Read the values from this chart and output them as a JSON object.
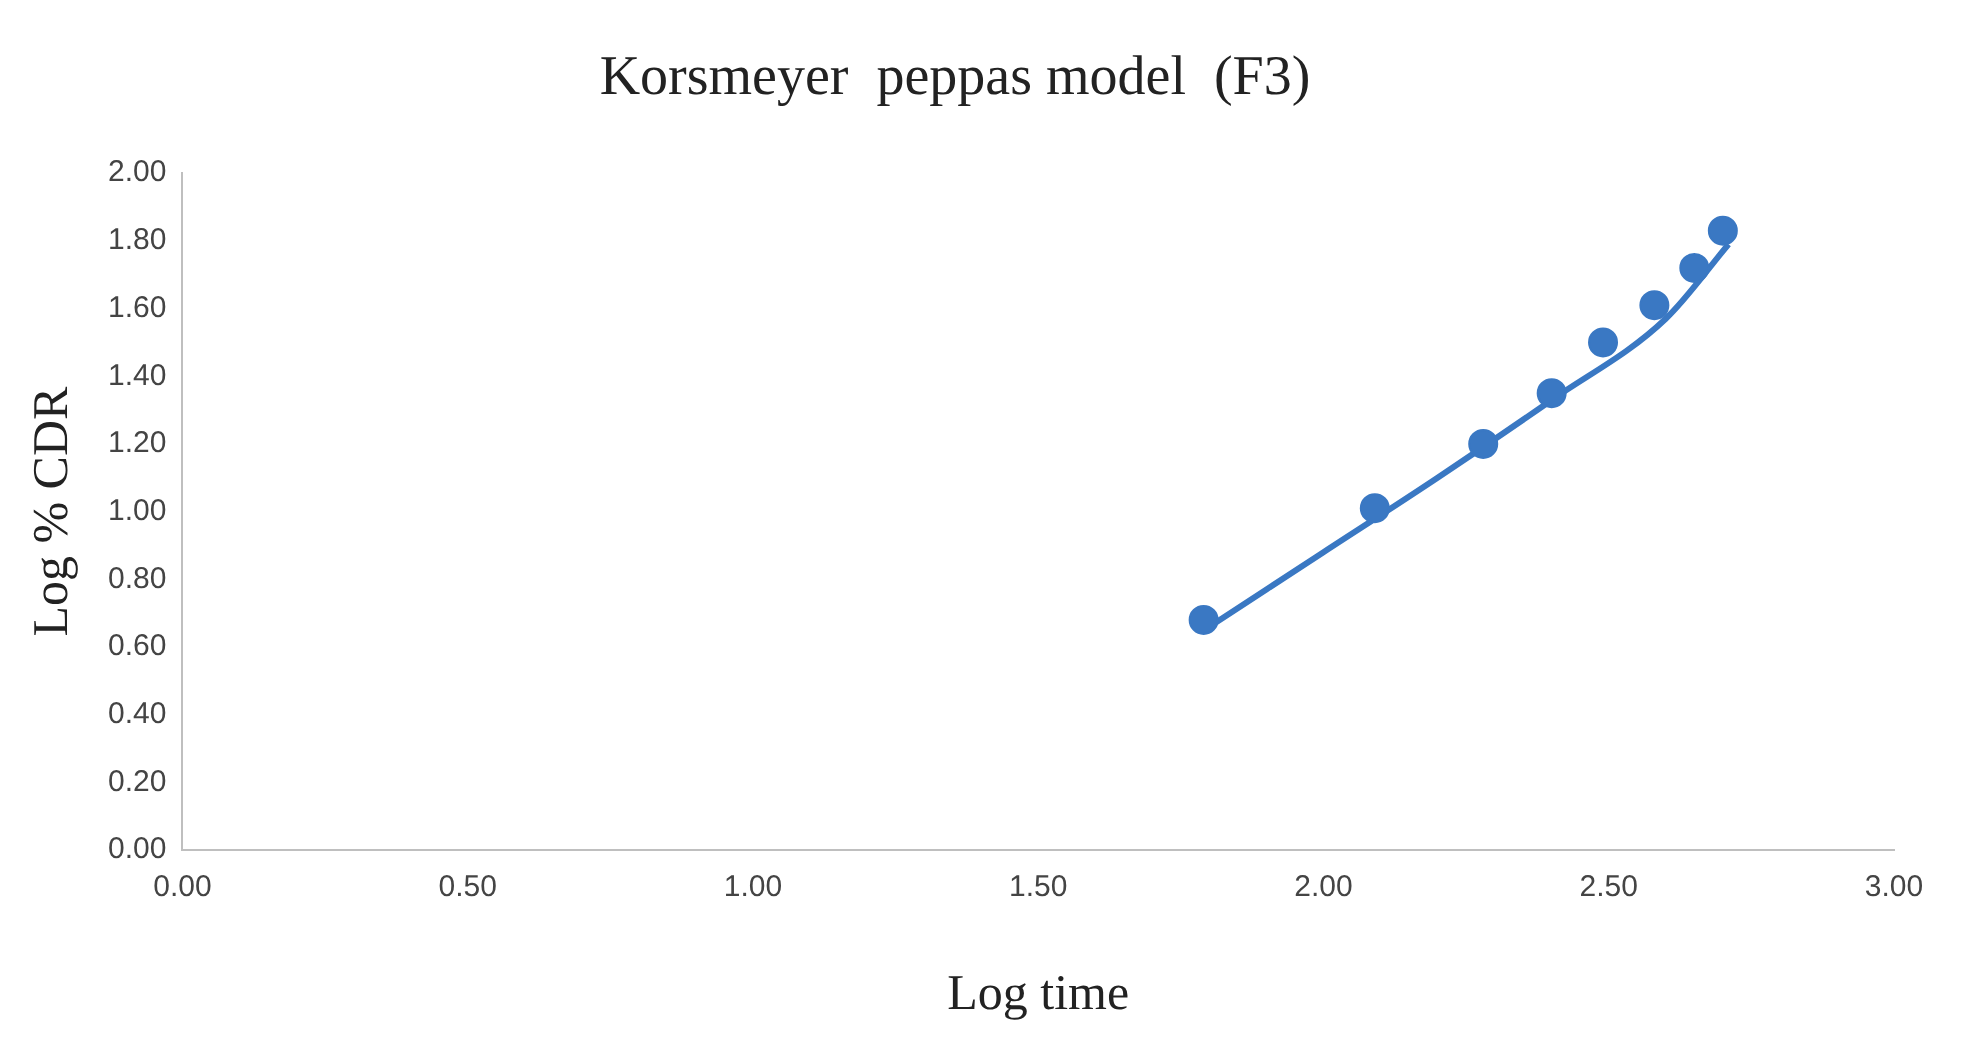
{
  "chart_data": {
    "type": "scatter",
    "title": "Korsmeyer  peppas model  (F3)",
    "xlabel": "Log time",
    "ylabel": "Log % CDR",
    "x": [
      1.79,
      2.09,
      2.28,
      2.4,
      2.49,
      2.58,
      2.65,
      2.7
    ],
    "series": [
      {
        "color": "#3a78c3",
        "marker": "circle",
        "values": [
          0.68,
          1.01,
          1.2,
          1.35,
          1.5,
          1.61,
          1.72,
          1.83
        ]
      },
      {
        "type": "line",
        "color": "#3a78c3",
        "marker": "none",
        "x": [
          1.8,
          2.0,
          2.2,
          2.4,
          2.6,
          2.71
        ],
        "values": [
          0.66,
          0.88,
          1.1,
          1.33,
          1.57,
          1.79
        ]
      }
    ],
    "xlim": [
      0,
      3
    ],
    "xticks": [
      {
        "value": 0,
        "label": "0.00"
      },
      {
        "value": 0.5,
        "label": "0.50"
      },
      {
        "value": 1,
        "label": "1.00"
      },
      {
        "value": 1.5,
        "label": "1.50"
      },
      {
        "value": 2,
        "label": "2.00"
      },
      {
        "value": 2.5,
        "label": "2.50"
      },
      {
        "value": 3,
        "label": "3.00"
      }
    ],
    "ylim": [
      0,
      2
    ],
    "yticks": [
      {
        "value": 0,
        "label": "0.00"
      },
      {
        "value": 0.2,
        "label": "0.20"
      },
      {
        "value": 0.4,
        "label": "0.40"
      },
      {
        "value": 0.6,
        "label": "0.60"
      },
      {
        "value": 0.8,
        "label": "0.80"
      },
      {
        "value": 1,
        "label": "1.00"
      },
      {
        "value": 1.2,
        "label": "1.20"
      },
      {
        "value": 1.4,
        "label": "1.40"
      },
      {
        "value": 1.6,
        "label": "1.60"
      },
      {
        "value": 1.8,
        "label": "1.80"
      },
      {
        "value": 2,
        "label": "2.00"
      }
    ],
    "grid": false,
    "legend": false
  }
}
